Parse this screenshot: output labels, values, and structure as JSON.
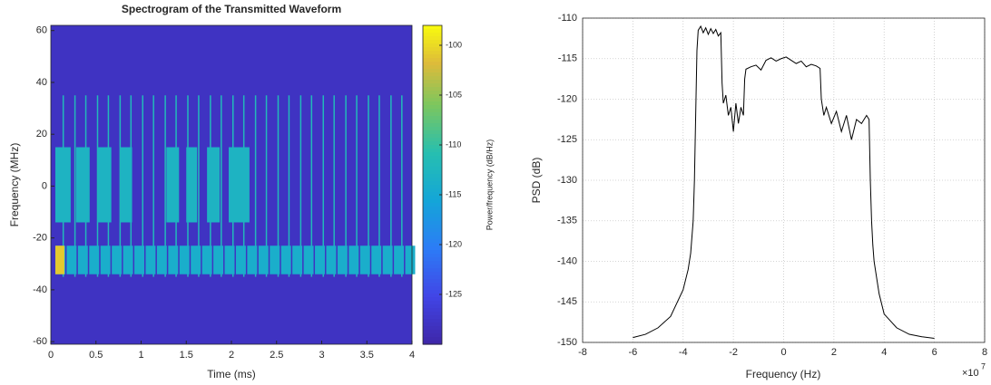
{
  "chart_data": [
    {
      "type": "spectrogram",
      "title": "Spectrogram of the Transmitted Waveform",
      "xlabel": "Time (ms)",
      "ylabel": "Frequency (MHz)",
      "xlim": [
        0,
        4
      ],
      "xticks": [
        0,
        0.5,
        1,
        1.5,
        2,
        2.5,
        3,
        3.5,
        4
      ],
      "ylim": [
        -61,
        62
      ],
      "yticks": [
        -60,
        -40,
        -20,
        0,
        20,
        40,
        60
      ],
      "colorbar_label": "Power/frequency (dB/Hz)",
      "clim": [
        -130,
        -98
      ],
      "cticks": [
        -125,
        -120,
        -115,
        -110,
        -105,
        -100
      ],
      "background": -128,
      "pulses": {
        "times": [
          0.13,
          0.26,
          0.38,
          0.51,
          0.63,
          0.76,
          0.88,
          1.01,
          1.13,
          1.26,
          1.38,
          1.51,
          1.63,
          1.76,
          1.88,
          2.01,
          2.13,
          2.26,
          2.38,
          2.51,
          2.63,
          2.76,
          2.88,
          3.01,
          3.13,
          3.26,
          3.38,
          3.51,
          3.63,
          3.76,
          3.88
        ],
        "freq_range": [
          -35,
          35
        ],
        "value": -112
      },
      "upper_blocks": {
        "starts": [
          0.05,
          0.28,
          0.52,
          0.77,
          1.28,
          1.5,
          1.73,
          1.97
        ],
        "ends": [
          0.22,
          0.43,
          0.67,
          0.9,
          1.42,
          1.62,
          1.87,
          2.2
        ],
        "freq_range": [
          -14,
          15
        ],
        "value": -113
      },
      "lower_blocks": {
        "starts": [
          0.05,
          0.175,
          0.3,
          0.425,
          0.55,
          0.675,
          0.8,
          0.925,
          1.05,
          1.175,
          1.3,
          1.425,
          1.55,
          1.675,
          1.8,
          1.925,
          2.05,
          2.175,
          2.3,
          2.425,
          2.55,
          2.675,
          2.8,
          2.925,
          3.05,
          3.175,
          3.3,
          3.425,
          3.55,
          3.675,
          3.8,
          3.925
        ],
        "width": 0.11,
        "freq_range": [
          -34,
          -23
        ],
        "value": -114
      },
      "hot_spot": {
        "time_range": [
          0.05,
          0.15
        ],
        "freq_range": [
          -34,
          -23
        ],
        "value": -101
      }
    },
    {
      "type": "line",
      "xlabel": "Frequency (Hz)",
      "ylabel": "PSD (dB)",
      "x_multiplier": "×10",
      "x_exponent": "7",
      "xlim": [
        -8,
        8
      ],
      "xticks": [
        -8,
        -6,
        -4,
        -2,
        0,
        2,
        4,
        6,
        8
      ],
      "ylim": [
        -150,
        -110
      ],
      "yticks": [
        -150,
        -145,
        -140,
        -135,
        -130,
        -125,
        -120,
        -115,
        -110
      ],
      "grid": true,
      "color": "#000000",
      "x": [
        -6,
        -5.5,
        -5,
        -4.5,
        -4,
        -3.8,
        -3.7,
        -3.6,
        -3.55,
        -3.5,
        -3.45,
        -3.4,
        -3.3,
        -3.2,
        -3.1,
        -3.0,
        -2.9,
        -2.8,
        -2.7,
        -2.6,
        -2.5,
        -2.45,
        -2.4,
        -2.3,
        -2.2,
        -2.1,
        -2.0,
        -1.9,
        -1.8,
        -1.7,
        -1.6,
        -1.55,
        -1.5,
        -1.3,
        -1.1,
        -0.9,
        -0.7,
        -0.5,
        -0.3,
        -0.1,
        0.1,
        0.3,
        0.5,
        0.7,
        0.9,
        1.1,
        1.3,
        1.45,
        1.5,
        1.6,
        1.7,
        1.9,
        2.1,
        2.3,
        2.5,
        2.7,
        2.9,
        3.1,
        3.3,
        3.4,
        3.45,
        3.5,
        3.55,
        3.6,
        3.7,
        3.8,
        4.0,
        4.5,
        5.0,
        5.5,
        6.0
      ],
      "values": [
        -149.4,
        -149,
        -148.2,
        -146.8,
        -143.5,
        -141,
        -139,
        -135,
        -130,
        -122,
        -114,
        -111.5,
        -111,
        -111.8,
        -111.2,
        -112,
        -111.3,
        -111.9,
        -111.4,
        -112.2,
        -111.8,
        -118,
        -120.5,
        -119.5,
        -122,
        -121,
        -124,
        -120.5,
        -123,
        -121,
        -122,
        -117.5,
        -116.3,
        -116,
        -115.8,
        -116.4,
        -115.2,
        -114.9,
        -115.3,
        -115,
        -114.8,
        -115.2,
        -115.6,
        -115.3,
        -116,
        -115.7,
        -115.9,
        -116.2,
        -120,
        -122,
        -121,
        -123,
        -121.5,
        -124,
        -122,
        -125,
        -122.5,
        -123,
        -122,
        -122.5,
        -130,
        -135,
        -138,
        -140,
        -142,
        -144,
        -146.5,
        -148.2,
        -149,
        -149.3,
        -149.5
      ]
    }
  ]
}
